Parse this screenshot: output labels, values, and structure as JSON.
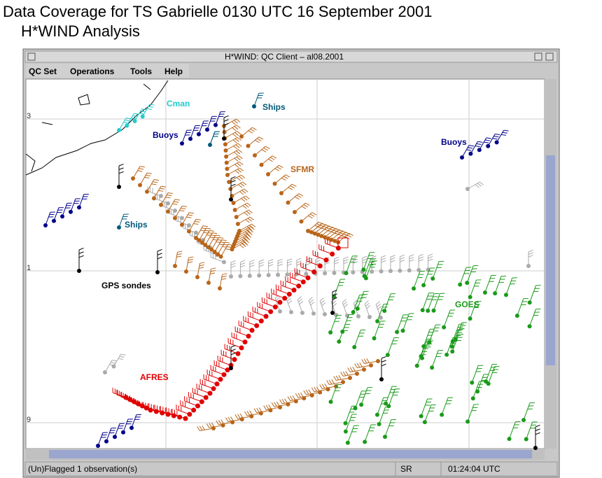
{
  "header": {
    "title": "Data Coverage for TS Gabrielle 0130 UTC 16 September 2001",
    "subtitle": "H*WIND Analysis"
  },
  "window": {
    "title": "H*WIND: QC Client – al08.2001",
    "menu": [
      "QC Set",
      "Operations",
      "Tools",
      "Help"
    ]
  },
  "map": {
    "grid_labels": [
      "3",
      "1",
      "9"
    ],
    "labels": [
      "Cman",
      "Ships",
      "Buoys",
      "SFMR",
      "Buoys",
      "Ships",
      "GPS sondes",
      "GOES",
      "AFRES"
    ]
  },
  "status": {
    "message": "(Un)Flagged 1 observation(s)",
    "mode": "SR",
    "time": "01:24:04 UTC"
  }
}
